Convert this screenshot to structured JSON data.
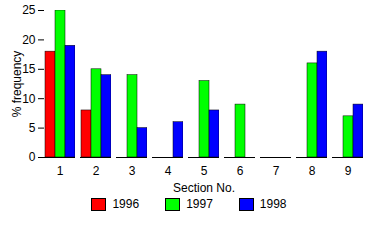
{
  "chart_data": {
    "type": "bar",
    "x_label": "Section No.",
    "y_label": "% frequency",
    "categories": [
      "1",
      "2",
      "3",
      "4",
      "5",
      "6",
      "7",
      "8",
      "9"
    ],
    "series": [
      {
        "name": "1996",
        "color": "#ff0000",
        "values": [
          18,
          8,
          0,
          0,
          0,
          0,
          0,
          0,
          0
        ]
      },
      {
        "name": "1997",
        "color": "#00ff00",
        "values": [
          25,
          15,
          14,
          0,
          13,
          9,
          0,
          16,
          7
        ]
      },
      {
        "name": "1998",
        "color": "#0000ff",
        "values": [
          19,
          14,
          5,
          6,
          8,
          0,
          0,
          18,
          9
        ]
      }
    ],
    "ylim": [
      0,
      25
    ],
    "yticks": [
      0,
      5,
      10,
      15,
      20,
      25
    ],
    "legend": "bottom"
  }
}
